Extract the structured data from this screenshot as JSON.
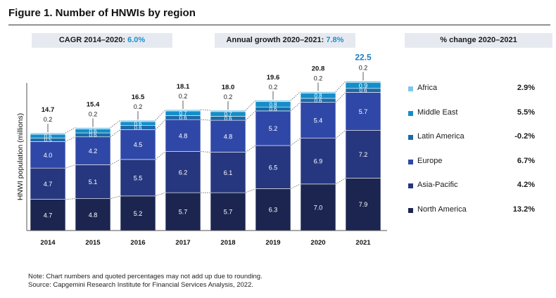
{
  "figure": {
    "title": "Figure 1. Number of HNWIs by region",
    "cagr_label": "CAGR 2014–2020: ",
    "cagr_value": "6.0%",
    "growth_label": "Annual growth 2020–2021: ",
    "growth_value": "7.8%",
    "change_header": "% change 2020–2021",
    "note": "Note: Chart numbers and quoted percentages may not add up due to rounding.",
    "source": "Source: Capgemini Research Institute for Financial Services Analysis, 2022."
  },
  "chart_data": {
    "type": "bar",
    "stacked": true,
    "ylabel": "HNWI population (millions)",
    "categories": [
      "2014",
      "2015",
      "2016",
      "2017",
      "2018",
      "2019",
      "2020",
      "2021"
    ],
    "totals": [
      "14.7",
      "15.4",
      "16.5",
      "18.1",
      "18.0",
      "19.6",
      "20.8",
      "22.5"
    ],
    "series": [
      {
        "name": "North America",
        "values": [
          4.7,
          4.8,
          5.2,
          5.7,
          5.7,
          6.3,
          7.0,
          7.9
        ],
        "color": "#1b2550",
        "change": "13.2%"
      },
      {
        "name": "Asia-Pacific",
        "values": [
          4.7,
          5.1,
          5.5,
          6.2,
          6.1,
          6.5,
          6.9,
          7.2
        ],
        "color": "#26377f",
        "change": "4.2%"
      },
      {
        "name": "Europe",
        "values": [
          4.0,
          4.2,
          4.5,
          4.8,
          4.8,
          5.2,
          5.4,
          5.7
        ],
        "color": "#2f48a7",
        "change": "6.7%"
      },
      {
        "name": "Latin America",
        "values": [
          0.5,
          0.6,
          0.6,
          0.6,
          0.6,
          0.6,
          0.6,
          0.6
        ],
        "color": "#1c6aa8",
        "change": "-0.2%"
      },
      {
        "name": "Middle East",
        "values": [
          0.6,
          0.6,
          0.6,
          0.7,
          0.7,
          0.8,
          0.8,
          0.9
        ],
        "color": "#148ec9",
        "change": "5.5%"
      },
      {
        "name": "Africa",
        "values": [
          0.2,
          0.2,
          0.2,
          0.2,
          0.2,
          0.2,
          0.2,
          0.2
        ],
        "color": "#7ec6ea",
        "change": "2.9%"
      }
    ],
    "ylim": [
      0,
      24
    ],
    "grid": false,
    "legend": "right"
  }
}
